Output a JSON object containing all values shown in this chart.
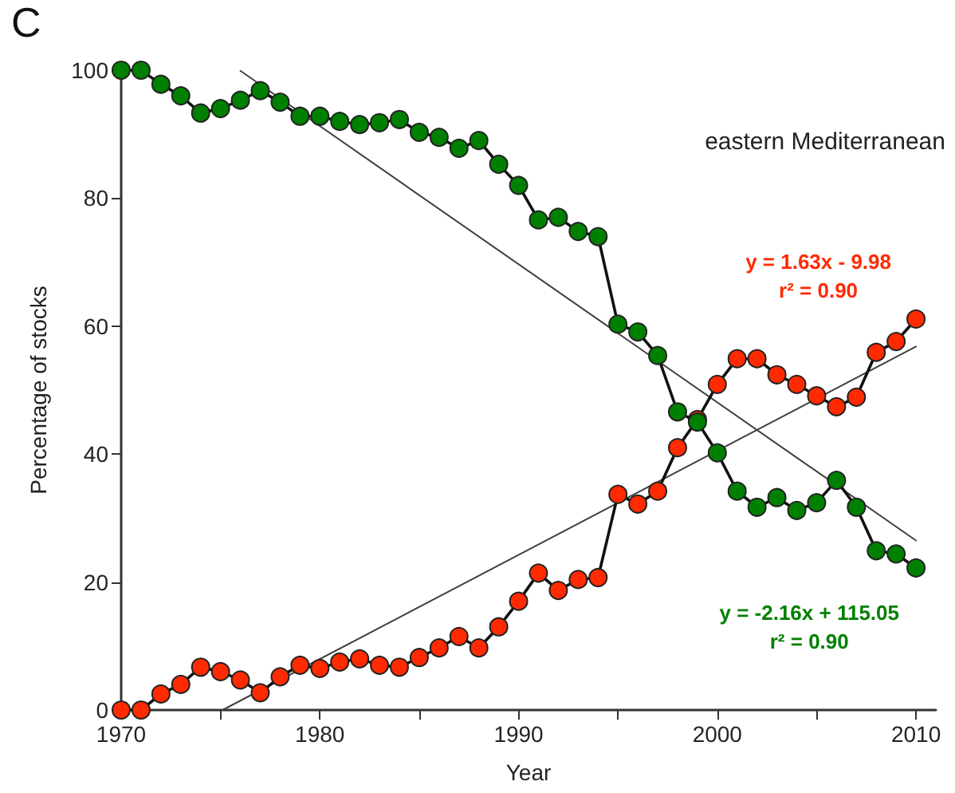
{
  "chart_data": {
    "type": "line",
    "title": "C",
    "xlabel": "Year",
    "ylabel": "Percentage of stocks",
    "x": [
      1970,
      1971,
      1972,
      1973,
      1974,
      1975,
      1976,
      1977,
      1978,
      1979,
      1980,
      1981,
      1982,
      1983,
      1984,
      1985,
      1986,
      1987,
      1988,
      1989,
      1990,
      1991,
      1992,
      1993,
      1994,
      1995,
      1996,
      1997,
      1998,
      1999,
      2000,
      2001,
      2002,
      2003,
      2004,
      2005,
      2006,
      2007,
      2008,
      2009,
      2010
    ],
    "series": [
      {
        "color": "#008000",
        "marker": "circle",
        "values": [
          100,
          100,
          97.8,
          96,
          93.3,
          94,
          95.3,
          96.8,
          95,
          92.8,
          92.8,
          92,
          91.5,
          91.8,
          92.3,
          90.3,
          89.5,
          87.8,
          89,
          85.3,
          82,
          76.6,
          77,
          74.8,
          74,
          60.3,
          59.1,
          55.4,
          46.6,
          45,
          40.2,
          34.2,
          31.7,
          33.2,
          31.2,
          32.4,
          35.9,
          31.7,
          24.9,
          24.4,
          22.2
        ]
      },
      {
        "color": "#ff2a00",
        "marker": "circle",
        "values": [
          0,
          0,
          2.5,
          4,
          6.7,
          6,
          4.7,
          2.7,
          5.2,
          7,
          6.5,
          7.5,
          8,
          7,
          6.7,
          8.2,
          9.7,
          11.5,
          9.7,
          13,
          17,
          21.4,
          18.7,
          20.4,
          20.7,
          33.7,
          32.2,
          34.2,
          41,
          45.4,
          50.9,
          54.9,
          54.9,
          52.4,
          50.9,
          49.1,
          47.4,
          48.9,
          55.9,
          57.6,
          61.1
        ]
      },
      {
        "color": "#404040",
        "marker": "none",
        "x": [
          1976,
          2010
        ],
        "values": [
          99.9,
          26.5
        ]
      },
      {
        "color": "#404040",
        "marker": "none",
        "x": [
          1975.1,
          2010
        ],
        "values": [
          0,
          56.8
        ]
      }
    ],
    "annotations": [
      "eastern Mediterranean",
      "y = 1.63x - 9.98\nr² = 0.90",
      "y = -2.16x + 115.05\nr² = 0.90"
    ],
    "xlim": [
      1970,
      2011
    ],
    "xticks": [
      1970,
      {
        "value": 1975,
        "label": null
      },
      1980,
      {
        "value": 1985,
        "label": null
      },
      1990,
      {
        "value": 1995,
        "label": null
      },
      2000,
      {
        "value": 2005,
        "label": null
      },
      2010
    ],
    "ylim": [
      0,
      100
    ],
    "yticks": [
      0,
      20,
      40,
      60,
      80,
      100
    ],
    "grid": false,
    "line_style": "solid"
  }
}
